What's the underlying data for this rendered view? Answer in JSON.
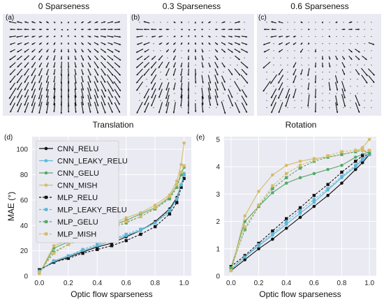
{
  "top_panels": [
    {
      "label": "(a)",
      "title": "0 Sparseness",
      "sparseness": 0.0
    },
    {
      "label": "(b)",
      "title": "0.3 Sparseness",
      "sparseness": 0.3
    },
    {
      "label": "(c)",
      "title": "0.6 Sparseness",
      "sparseness": 0.6
    }
  ],
  "colors": {
    "CNN_RELU": "#111111",
    "CNN_LEAKY_RELU": "#5bb8d8",
    "CNN_GELU": "#55a868",
    "CNN_MISH": "#d4bc6a",
    "MLP_RELU": "#111111",
    "MLP_LEAKY_RELU": "#5bb8d8",
    "MLP_GELU": "#55a868",
    "MLP_MISH": "#d4bc6a",
    "panel_bg": "#eaeaf2"
  },
  "chart_data": [
    {
      "type": "line",
      "label": "(d)",
      "title": "Translation",
      "xlabel": "Optic flow sparseness",
      "ylabel": "MAE (°)",
      "xlim": [
        -0.05,
        1.05
      ],
      "ylim": [
        0,
        110
      ],
      "xticks": [
        "0.0",
        "0.2",
        "0.4",
        "0.6",
        "0.8",
        "1.0"
      ],
      "yticks": [
        "0",
        "20",
        "40",
        "60",
        "80",
        "100"
      ],
      "grid": true,
      "legend": "top-left",
      "series": [
        {
          "name": "CNN_RELU",
          "style": "solid",
          "marker": "circle",
          "x": [
            0,
            0.1,
            0.2,
            0.3,
            0.4,
            0.5,
            0.6,
            0.7,
            0.8,
            0.9,
            0.95,
            0.98,
            1.0
          ],
          "y": [
            5,
            11,
            15,
            19,
            23,
            26,
            31,
            36,
            43,
            53,
            62,
            72,
            80
          ]
        },
        {
          "name": "CNN_LEAKY_RELU",
          "style": "solid",
          "marker": "circle",
          "x": [
            0,
            0.1,
            0.2,
            0.3,
            0.4,
            0.5,
            0.6,
            0.7,
            0.8,
            0.9,
            0.95,
            0.98,
            1.0
          ],
          "y": [
            4,
            12,
            16,
            20,
            24,
            28,
            32,
            36,
            42,
            51,
            61,
            72,
            81
          ]
        },
        {
          "name": "CNN_GELU",
          "style": "solid",
          "marker": "circle",
          "x": [
            0,
            0.1,
            0.2,
            0.3,
            0.4,
            0.5,
            0.6,
            0.7,
            0.8,
            0.9,
            0.95,
            0.98,
            1.0
          ],
          "y": [
            2,
            22,
            27,
            31,
            36,
            40,
            44,
            49,
            54,
            62,
            72,
            80,
            86
          ]
        },
        {
          "name": "CNN_MISH",
          "style": "solid",
          "marker": "circle",
          "x": [
            0,
            0.1,
            0.2,
            0.3,
            0.4,
            0.5,
            0.6,
            0.7,
            0.8,
            0.9,
            0.95,
            0.98,
            1.0
          ],
          "y": [
            2,
            24,
            28,
            32,
            37,
            41,
            46,
            50,
            56,
            64,
            75,
            88,
            105
          ]
        },
        {
          "name": "MLP_RELU",
          "style": "dashed",
          "marker": "square",
          "x": [
            0,
            0.1,
            0.2,
            0.3,
            0.4,
            0.5,
            0.6,
            0.7,
            0.8,
            0.9,
            0.95,
            0.98,
            1.0
          ],
          "y": [
            5,
            11,
            14,
            18,
            21,
            24,
            28,
            33,
            39,
            49,
            58,
            70,
            77
          ]
        },
        {
          "name": "MLP_LEAKY_RELU",
          "style": "dashed",
          "marker": "square",
          "x": [
            0,
            0.1,
            0.2,
            0.3,
            0.4,
            0.5,
            0.6,
            0.7,
            0.8,
            0.9,
            0.95,
            0.98,
            1.0
          ],
          "y": [
            4,
            12,
            16,
            21,
            25,
            29,
            33,
            37,
            42,
            52,
            61,
            72,
            80
          ]
        },
        {
          "name": "MLP_GELU",
          "style": "dashed",
          "marker": "square",
          "x": [
            0,
            0.1,
            0.2,
            0.3,
            0.4,
            0.5,
            0.6,
            0.7,
            0.8,
            0.9,
            0.95,
            0.98,
            1.0
          ],
          "y": [
            3,
            19,
            25,
            29,
            34,
            38,
            42,
            47,
            53,
            61,
            70,
            80,
            86
          ]
        },
        {
          "name": "MLP_MISH",
          "style": "dashed",
          "marker": "square",
          "x": [
            0,
            0.1,
            0.2,
            0.3,
            0.4,
            0.5,
            0.6,
            0.7,
            0.8,
            0.9,
            0.95,
            0.98,
            1.0
          ],
          "y": [
            3,
            18,
            25,
            30,
            35,
            39,
            43,
            47,
            54,
            63,
            72,
            82,
            87
          ]
        }
      ]
    },
    {
      "type": "line",
      "label": "(e)",
      "title": "Rotation",
      "xlabel": "Optic flow sparseness",
      "ylabel": "",
      "xlim": [
        -0.05,
        1.05
      ],
      "ylim": [
        0,
        5.1
      ],
      "xticks": [
        "0.0",
        "0.2",
        "0.4",
        "0.6",
        "0.8",
        "1.0"
      ],
      "yticks": [
        "0",
        "1",
        "2",
        "3",
        "4",
        "5"
      ],
      "grid": true,
      "legend": "none",
      "series": [
        {
          "name": "CNN_RELU",
          "style": "solid",
          "marker": "circle",
          "x": [
            0,
            0.1,
            0.2,
            0.3,
            0.4,
            0.5,
            0.6,
            0.7,
            0.8,
            0.9,
            0.95,
            1.0
          ],
          "y": [
            0.2,
            0.6,
            1.0,
            1.35,
            1.75,
            2.15,
            2.55,
            2.95,
            3.4,
            3.9,
            4.15,
            4.45
          ]
        },
        {
          "name": "CNN_LEAKY_RELU",
          "style": "solid",
          "marker": "circle",
          "x": [
            0,
            0.1,
            0.2,
            0.3,
            0.4,
            0.5,
            0.6,
            0.7,
            0.8,
            0.9,
            0.95,
            1.0
          ],
          "y": [
            0.25,
            0.7,
            1.1,
            1.5,
            1.9,
            2.3,
            2.7,
            3.15,
            3.6,
            4.0,
            4.25,
            4.45
          ]
        },
        {
          "name": "CNN_GELU",
          "style": "solid",
          "marker": "circle",
          "x": [
            0,
            0.1,
            0.2,
            0.3,
            0.4,
            0.5,
            0.6,
            0.7,
            0.8,
            0.9,
            0.95,
            1.0
          ],
          "y": [
            0.3,
            2.0,
            2.55,
            3.05,
            3.4,
            3.6,
            3.75,
            3.9,
            4.05,
            4.35,
            4.45,
            4.55
          ]
        },
        {
          "name": "CNN_MISH",
          "style": "solid",
          "marker": "circle",
          "x": [
            0,
            0.1,
            0.2,
            0.3,
            0.4,
            0.5,
            0.6,
            0.7,
            0.8,
            0.9,
            0.95,
            1.0
          ],
          "y": [
            0.2,
            2.2,
            3.1,
            3.7,
            4.05,
            4.2,
            4.3,
            4.35,
            4.45,
            4.55,
            4.7,
            5.0
          ]
        },
        {
          "name": "MLP_RELU",
          "style": "dashed",
          "marker": "square",
          "x": [
            0,
            0.1,
            0.2,
            0.3,
            0.4,
            0.5,
            0.6,
            0.7,
            0.8,
            0.9,
            0.95,
            1.0
          ],
          "y": [
            0.35,
            0.75,
            1.2,
            1.65,
            2.1,
            2.5,
            2.95,
            3.35,
            3.8,
            4.2,
            4.4,
            4.45
          ]
        },
        {
          "name": "MLP_LEAKY_RELU",
          "style": "dashed",
          "marker": "square",
          "x": [
            0,
            0.1,
            0.2,
            0.3,
            0.4,
            0.5,
            0.6,
            0.7,
            0.8,
            0.9,
            0.95,
            1.0
          ],
          "y": [
            0.25,
            0.7,
            1.15,
            1.55,
            2.0,
            2.4,
            2.8,
            3.2,
            3.65,
            4.05,
            4.3,
            4.45
          ]
        },
        {
          "name": "MLP_GELU",
          "style": "dashed",
          "marker": "square",
          "x": [
            0,
            0.1,
            0.2,
            0.3,
            0.4,
            0.5,
            0.6,
            0.7,
            0.8,
            0.9,
            0.95,
            1.0
          ],
          "y": [
            0.3,
            1.7,
            2.55,
            3.2,
            3.6,
            3.95,
            4.2,
            4.35,
            4.45,
            4.55,
            4.6,
            4.5
          ]
        },
        {
          "name": "MLP_MISH",
          "style": "dashed",
          "marker": "square",
          "x": [
            0,
            0.1,
            0.2,
            0.3,
            0.4,
            0.5,
            0.6,
            0.7,
            0.8,
            0.9,
            0.95,
            1.0
          ],
          "y": [
            0.2,
            1.8,
            2.6,
            3.3,
            3.75,
            4.05,
            4.25,
            4.4,
            4.55,
            4.6,
            4.6,
            4.6
          ]
        }
      ]
    }
  ]
}
